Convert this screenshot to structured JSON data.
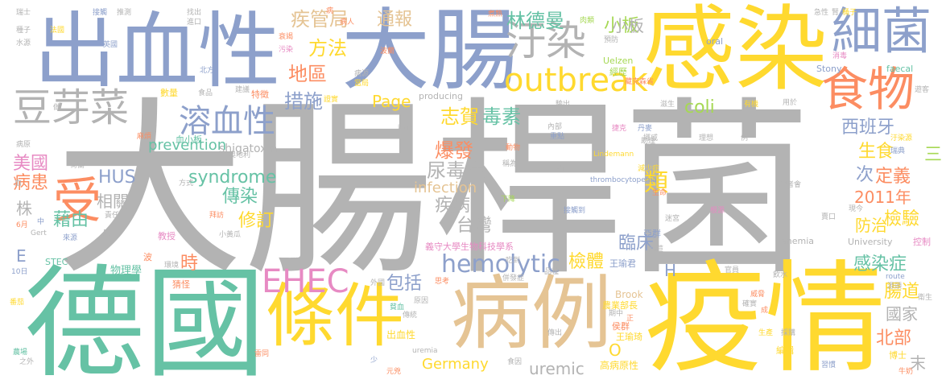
{
  "colors": {
    "gray": "#b3b3b3",
    "yellow": "#ffd92f",
    "green": "#66c2a5",
    "blue": "#8da0cb",
    "orange": "#fc8d62",
    "pink": "#e78ac3",
    "lime": "#a6d854",
    "tan": "#e5c494"
  },
  "words": [
    {
      "text": "大腸桿菌",
      "color": "gray"
    },
    {
      "text": "德國",
      "color": "green"
    },
    {
      "text": "疫情",
      "color": "yellow"
    },
    {
      "text": "感染",
      "color": "yellow"
    },
    {
      "text": "大腸",
      "color": "blue"
    },
    {
      "text": "出血性",
      "color": "blue"
    },
    {
      "text": "病例",
      "color": "tan"
    },
    {
      "text": "條件",
      "color": "yellow"
    },
    {
      "text": "細菌",
      "color": "blue"
    },
    {
      "text": "食物",
      "color": "orange"
    },
    {
      "text": "汙染",
      "color": "gray"
    },
    {
      "text": "豆芽菜",
      "color": "gray"
    },
    {
      "text": "受",
      "color": "orange"
    },
    {
      "text": "outbreak",
      "color": "yellow"
    },
    {
      "text": "溶血性",
      "color": "blue"
    },
    {
      "text": "EHEC",
      "color": "pink"
    },
    {
      "text": "hemolytic",
      "color": "blue"
    },
    {
      "text": "疾管局",
      "color": "tan"
    },
    {
      "text": "通報",
      "color": "tan"
    },
    {
      "text": "林德曼",
      "color": "green"
    },
    {
      "text": "小板",
      "color": "lime"
    },
    {
      "text": "方法",
      "color": "yellow"
    },
    {
      "text": "地區",
      "color": "orange"
    },
    {
      "text": "措施",
      "color": "blue"
    },
    {
      "text": "Page",
      "color": "yellow"
    },
    {
      "text": "志賀",
      "color": "yellow"
    },
    {
      "text": "毒素",
      "color": "green"
    },
    {
      "text": "coli",
      "color": "lime"
    },
    {
      "text": "西班牙",
      "color": "blue"
    },
    {
      "text": "生食",
      "color": "yellow"
    },
    {
      "text": "三",
      "color": "lime"
    },
    {
      "text": "爆發",
      "color": "orange"
    },
    {
      "text": "尿毒症",
      "color": "gray"
    },
    {
      "text": "prevention",
      "color": "green"
    },
    {
      "text": "shigatoxin",
      "color": "gray"
    },
    {
      "text": "美國",
      "color": "pink"
    },
    {
      "text": "病患",
      "color": "orange"
    },
    {
      "text": "HUS",
      "color": "blue"
    },
    {
      "text": "syndrome",
      "color": "green"
    },
    {
      "text": "傳染",
      "color": "green"
    },
    {
      "text": "infection",
      "color": "tan"
    },
    {
      "text": "疾病",
      "color": "gray"
    },
    {
      "text": "次",
      "color": "blue"
    },
    {
      "text": "定義",
      "color": "orange"
    },
    {
      "text": "2011年",
      "color": "orange"
    },
    {
      "text": "株",
      "color": "gray"
    },
    {
      "text": "相關",
      "color": "gray"
    },
    {
      "text": "修訂",
      "color": "yellow"
    },
    {
      "text": "台灣",
      "color": "gray"
    },
    {
      "text": "藉由",
      "color": "green"
    },
    {
      "text": "小板",
      "color": "gray"
    },
    {
      "text": "類",
      "color": "yellow"
    },
    {
      "text": "臨床",
      "color": "blue"
    },
    {
      "text": "檢驗",
      "color": "yellow"
    },
    {
      "text": "防治",
      "color": "yellow"
    },
    {
      "text": "包括",
      "color": "blue"
    },
    {
      "text": "檢體",
      "color": "yellow"
    },
    {
      "text": "H",
      "color": "blue"
    },
    {
      "text": "感染症",
      "color": "green"
    },
    {
      "text": "時",
      "color": "orange"
    },
    {
      "text": "E",
      "color": "blue"
    },
    {
      "text": "腸道",
      "color": "yellow"
    },
    {
      "text": "國家",
      "color": "gray"
    },
    {
      "text": "北部",
      "color": "orange"
    },
    {
      "text": "末",
      "color": "gray"
    },
    {
      "text": "Germany",
      "color": "yellow"
    },
    {
      "text": "uremic",
      "color": "gray"
    },
    {
      "text": "O",
      "color": "yellow"
    },
    {
      "text": "物理學",
      "color": "green"
    },
    {
      "text": "義守大學生物科技學系",
      "color": "pink"
    },
    {
      "text": "出血性",
      "color": "yellow"
    },
    {
      "text": "高病原性",
      "color": "yellow"
    },
    {
      "text": "王瑜君",
      "color": "blue"
    },
    {
      "text": "亞群",
      "color": "blue"
    },
    {
      "text": "University",
      "color": "gray"
    },
    {
      "text": "控制",
      "color": "pink"
    },
    {
      "text": "anemia",
      "color": "gray"
    },
    {
      "text": "Brook",
      "color": "tan"
    },
    {
      "text": "農業部長",
      "color": "yellow"
    },
    {
      "text": "侯群",
      "color": "orange"
    },
    {
      "text": "編輯",
      "color": "yellow"
    },
    {
      "text": "博士",
      "color": "yellow"
    },
    {
      "text": "王瑜琦",
      "color": "yellow"
    },
    {
      "text": "瑞士",
      "color": "gray"
    },
    {
      "text": "接觸",
      "color": "blue"
    },
    {
      "text": "推測",
      "color": "gray"
    },
    {
      "text": "找出",
      "color": "gray"
    },
    {
      "text": "進口",
      "color": "gray"
    },
    {
      "text": "病人",
      "color": "orange"
    },
    {
      "text": "煮熟",
      "color": "orange"
    },
    {
      "text": "肉類",
      "color": "lime"
    },
    {
      "text": "急性",
      "color": "gray"
    },
    {
      "text": "腎",
      "color": "gray"
    },
    {
      "text": "桶子",
      "color": "yellow"
    },
    {
      "text": "種子",
      "color": "gray"
    },
    {
      "text": "法國",
      "color": "yellow"
    },
    {
      "text": "水源",
      "color": "gray"
    },
    {
      "text": "英國",
      "color": "blue"
    },
    {
      "text": "衰竭",
      "color": "orange"
    },
    {
      "text": "污染",
      "color": "pink"
    },
    {
      "text": "波蘭",
      "color": "orange"
    },
    {
      "text": "預防",
      "color": "gray"
    },
    {
      "text": "Uelzen",
      "color": "lime"
    },
    {
      "text": "經歷",
      "color": "lime"
    },
    {
      "text": "oral",
      "color": "blue"
    },
    {
      "text": "消毒",
      "color": "pink"
    },
    {
      "text": "Stony",
      "color": "blue"
    },
    {
      "text": "faecal",
      "color": "green"
    },
    {
      "text": "遊客",
      "color": "gray"
    },
    {
      "text": "北方",
      "color": "blue"
    },
    {
      "text": "食品",
      "color": "gray"
    },
    {
      "text": "建議",
      "color": "gray"
    },
    {
      "text": "病源",
      "color": "gray"
    },
    {
      "text": "當局",
      "color": "yellow"
    },
    {
      "text": "藏克森省",
      "color": "orange"
    },
    {
      "text": "數量",
      "color": "yellow"
    },
    {
      "text": "特徵",
      "color": "orange"
    },
    {
      "text": "證實",
      "color": "yellow"
    },
    {
      "text": "producing",
      "color": "gray"
    },
    {
      "text": "驗出",
      "color": "gray"
    },
    {
      "text": "滋生",
      "color": "gray"
    },
    {
      "text": "有機",
      "color": "yellow"
    },
    {
      "text": "用於",
      "color": "gray"
    },
    {
      "text": "做",
      "color": "gray"
    },
    {
      "text": "種植",
      "color": "gray"
    },
    {
      "text": "內部",
      "color": "gray"
    },
    {
      "text": "捷克",
      "color": "pink"
    },
    {
      "text": "挪威",
      "color": "gray"
    },
    {
      "text": "丹麥",
      "color": "blue"
    },
    {
      "text": "理想",
      "color": "gray"
    },
    {
      "text": "例",
      "color": "gray"
    },
    {
      "text": "汙染源",
      "color": "yellow"
    },
    {
      "text": "瑞典",
      "color": "blue"
    },
    {
      "text": "病原",
      "color": "gray"
    },
    {
      "text": "血小板",
      "color": "green"
    },
    {
      "text": "重點",
      "color": "blue"
    },
    {
      "text": "動物",
      "color": "orange"
    },
    {
      "text": "麻煩",
      "color": "orange"
    },
    {
      "text": "助理",
      "color": "gray"
    },
    {
      "text": "Lindemann",
      "color": "yellow"
    },
    {
      "text": "荷蘭",
      "color": "gray"
    },
    {
      "text": "奧地利",
      "color": "gray"
    },
    {
      "text": "稱為",
      "color": "gray"
    },
    {
      "text": "折",
      "color": "gray"
    },
    {
      "text": "減少症",
      "color": "yellow"
    },
    {
      "text": "thrombocytopenia",
      "color": "blue"
    },
    {
      "text": "血",
      "color": "gray"
    },
    {
      "text": "方式",
      "color": "gray"
    },
    {
      "text": "責任",
      "color": "gray"
    },
    {
      "text": "下降",
      "color": "lime"
    },
    {
      "text": "記者會",
      "color": "gray"
    },
    {
      "text": "生命",
      "color": "orange"
    },
    {
      "text": "接觸到",
      "color": "blue"
    },
    {
      "text": "迷宮",
      "color": "gray"
    },
    {
      "text": "根源",
      "color": "pink"
    },
    {
      "text": "現今",
      "color": "gray"
    },
    {
      "text": "賣口",
      "color": "gray"
    },
    {
      "text": "6月",
      "color": "orange"
    },
    {
      "text": "中",
      "color": "blue"
    },
    {
      "text": "Gert",
      "color": "gray"
    },
    {
      "text": "來源",
      "color": "blue"
    },
    {
      "text": "拜訪",
      "color": "orange"
    },
    {
      "text": "小黃瓜",
      "color": "gray"
    },
    {
      "text": "高苣",
      "color": "gray"
    },
    {
      "text": "度",
      "color": "gray"
    },
    {
      "text": "教授",
      "color": "pink"
    },
    {
      "text": "STEC",
      "color": "green"
    },
    {
      "text": "波",
      "color": "orange"
    },
    {
      "text": "環境",
      "color": "gray"
    },
    {
      "text": "吃到",
      "color": "gray"
    },
    {
      "text": "官員",
      "color": "gray"
    },
    {
      "text": "飲水",
      "color": "gray"
    },
    {
      "text": "route",
      "color": "blue"
    },
    {
      "text": "源頭",
      "color": "gray"
    },
    {
      "text": "10日",
      "color": "blue"
    },
    {
      "text": "猜怪",
      "color": "orange"
    },
    {
      "text": "外國",
      "color": "gray"
    },
    {
      "text": "品種",
      "color": "gray"
    },
    {
      "text": "思考",
      "color": "orange"
    },
    {
      "text": "併發症",
      "color": "gray"
    },
    {
      "text": "番茄",
      "color": "yellow"
    },
    {
      "text": "貧血",
      "color": "green"
    },
    {
      "text": "原因",
      "color": "gray"
    },
    {
      "text": "期中",
      "color": "gray"
    },
    {
      "text": "確實",
      "color": "gray"
    },
    {
      "text": "威脅",
      "color": "orange"
    },
    {
      "text": "衛生",
      "color": "gray"
    },
    {
      "text": "傳統",
      "color": "gray"
    },
    {
      "text": "傳出",
      "color": "gray"
    },
    {
      "text": "成",
      "color": "orange"
    },
    {
      "text": "採購",
      "color": "gray"
    },
    {
      "text": "生產",
      "color": "yellow"
    },
    {
      "text": "農場",
      "color": "green"
    },
    {
      "text": "之外",
      "color": "gray"
    },
    {
      "text": "雷同",
      "color": "orange"
    },
    {
      "text": "uremia",
      "color": "gray"
    },
    {
      "text": "少",
      "color": "blue"
    },
    {
      "text": "元兇",
      "color": "orange"
    },
    {
      "text": "食因",
      "color": "gray"
    },
    {
      "text": "習慣",
      "color": "blue"
    },
    {
      "text": "牛奶",
      "color": "orange"
    },
    {
      "text": "正",
      "color": "orange"
    },
    {
      "text": "病",
      "color": "orange"
    }
  ]
}
